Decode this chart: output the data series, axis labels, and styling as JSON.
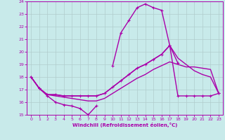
{
  "xlabel": "Windchill (Refroidissement éolien,°C)",
  "background_color": "#c8eaea",
  "grid_color": "#b0cccc",
  "line_color": "#aa00aa",
  "xlim": [
    -0.5,
    23.5
  ],
  "ylim": [
    15,
    24
  ],
  "xticks": [
    0,
    1,
    2,
    3,
    4,
    5,
    6,
    7,
    8,
    9,
    10,
    11,
    12,
    13,
    14,
    15,
    16,
    17,
    18,
    19,
    20,
    21,
    22,
    23
  ],
  "yticks": [
    15,
    16,
    17,
    18,
    19,
    20,
    21,
    22,
    23,
    24
  ],
  "series": [
    {
      "x": [
        0,
        1,
        2,
        3,
        4,
        5,
        6,
        7,
        8,
        9,
        10,
        11,
        12,
        13,
        14,
        15,
        16,
        17,
        18,
        19,
        20,
        21,
        22,
        23
      ],
      "y": [
        18.0,
        17.1,
        16.5,
        16.0,
        15.8,
        15.7,
        15.5,
        15.0,
        15.7,
        null,
        18.9,
        21.5,
        22.5,
        23.5,
        23.8,
        23.5,
        23.3,
        20.5,
        19.1,
        null,
        null,
        null,
        null,
        16.7
      ],
      "has_markers": true,
      "markersize": 2.5,
      "linewidth": 1.0
    },
    {
      "x": [
        0,
        1,
        2,
        3,
        4,
        5,
        6,
        7,
        8,
        9,
        10,
        11,
        12,
        13,
        14,
        15,
        16,
        17,
        18,
        19,
        20,
        21,
        22,
        23
      ],
      "y": [
        18.0,
        17.1,
        16.6,
        16.5,
        16.4,
        16.3,
        16.2,
        16.1,
        16.1,
        16.3,
        16.7,
        17.1,
        17.5,
        17.9,
        18.2,
        18.6,
        18.9,
        19.2,
        19.0,
        18.8,
        18.8,
        18.7,
        18.6,
        16.7
      ],
      "has_markers": false,
      "markersize": 0,
      "linewidth": 1.0
    },
    {
      "x": [
        0,
        1,
        2,
        3,
        4,
        5,
        6,
        7,
        8,
        9,
        10,
        11,
        12,
        13,
        14,
        15,
        16,
        17,
        18,
        19,
        20,
        21,
        22,
        23
      ],
      "y": [
        18.0,
        17.1,
        16.6,
        16.6,
        16.5,
        16.5,
        16.5,
        16.5,
        16.5,
        16.7,
        17.2,
        17.7,
        18.2,
        18.7,
        19.0,
        19.4,
        19.8,
        20.5,
        19.5,
        19.0,
        18.5,
        18.2,
        18.0,
        16.7
      ],
      "has_markers": false,
      "markersize": 0,
      "linewidth": 1.0
    },
    {
      "x": [
        0,
        1,
        2,
        3,
        4,
        5,
        6,
        7,
        8,
        9,
        10,
        11,
        12,
        13,
        14,
        15,
        16,
        17,
        18,
        19,
        20,
        21,
        22,
        23
      ],
      "y": [
        18.0,
        17.1,
        16.6,
        16.6,
        16.5,
        16.5,
        16.5,
        16.5,
        16.5,
        16.7,
        17.2,
        17.7,
        18.2,
        18.7,
        19.0,
        19.4,
        19.8,
        20.5,
        16.5,
        16.5,
        16.5,
        16.5,
        16.5,
        16.7
      ],
      "has_markers": true,
      "markersize": 2.5,
      "linewidth": 1.0
    }
  ]
}
